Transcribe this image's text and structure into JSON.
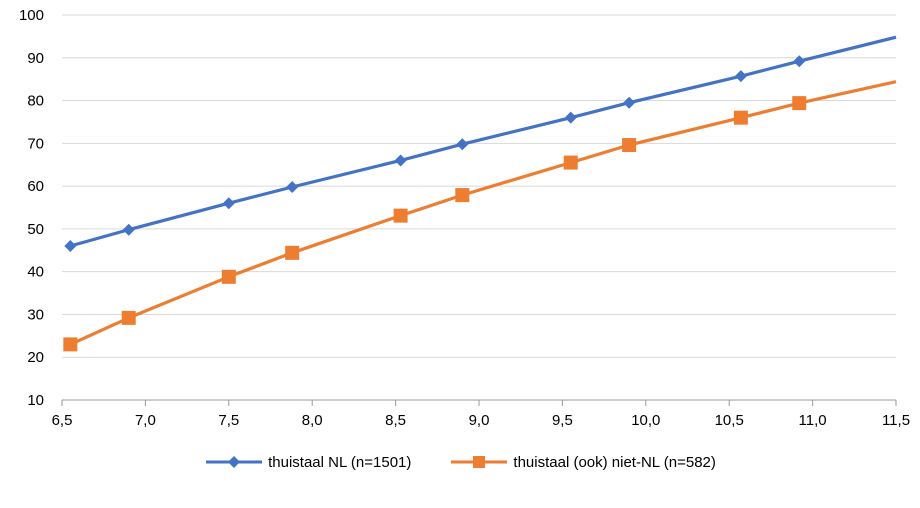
{
  "chart_data": {
    "type": "line",
    "title": "",
    "xlabel": "",
    "ylabel": "",
    "xlim": [
      6.5,
      11.5
    ],
    "ylim": [
      10,
      100
    ],
    "xticks": [
      6.5,
      7.0,
      7.5,
      8.0,
      8.5,
      9.0,
      9.5,
      10.0,
      10.5,
      11.0,
      11.5
    ],
    "xtick_labels": [
      "6,5",
      "7,0",
      "7,5",
      "8,0",
      "8,5",
      "9,0",
      "9,5",
      "10,0",
      "10,5",
      "11,0",
      "11,5"
    ],
    "yticks": [
      10,
      20,
      30,
      40,
      50,
      60,
      70,
      80,
      90,
      100
    ],
    "ytick_labels": [
      "10",
      "20",
      "30",
      "40",
      "50",
      "60",
      "70",
      "80",
      "90",
      "100"
    ],
    "grid": "horizontal",
    "legend_position": "bottom",
    "series": [
      {
        "name": "thuistaal NL (n=1501)",
        "color": "#4472C4",
        "marker": "diamond",
        "points": [
          [
            6.55,
            46
          ],
          [
            6.9,
            49.8
          ],
          [
            7.5,
            56
          ],
          [
            7.88,
            59.8
          ],
          [
            8.53,
            66
          ],
          [
            8.9,
            69.8
          ],
          [
            9.55,
            76
          ],
          [
            9.9,
            79.5
          ],
          [
            10.57,
            85.7
          ],
          [
            10.92,
            89.2
          ]
        ],
        "line_end": [
          11.5,
          94.8
        ]
      },
      {
        "name": "thuistaal (ook) niet-NL (n=582)",
        "color": "#ED7D31",
        "marker": "square",
        "points": [
          [
            6.55,
            23
          ],
          [
            6.9,
            29.2
          ],
          [
            7.5,
            38.8
          ],
          [
            7.88,
            44.4
          ],
          [
            8.53,
            53.1
          ],
          [
            8.9,
            57.9
          ],
          [
            9.55,
            65.5
          ],
          [
            9.9,
            69.6
          ],
          [
            10.57,
            76
          ],
          [
            10.92,
            79.4
          ]
        ],
        "line_end": [
          11.5,
          84.4
        ]
      }
    ]
  }
}
